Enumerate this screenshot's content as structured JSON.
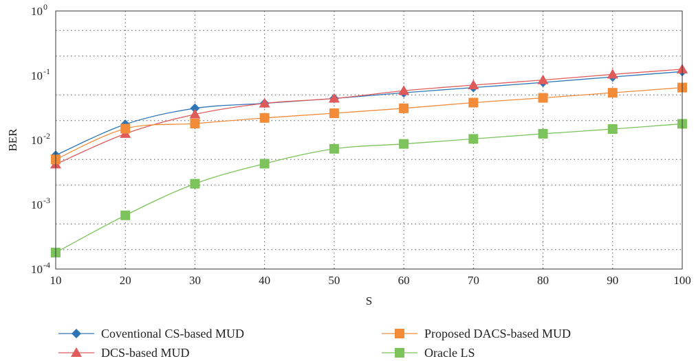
{
  "chart_data": {
    "type": "line",
    "xlabel": "S",
    "ylabel": "BER",
    "y_scale": "log",
    "xlim": [
      10,
      100
    ],
    "ylim": [
      0.0001,
      1
    ],
    "x_ticks": [
      "10",
      "20",
      "30",
      "40",
      "50",
      "60",
      "70",
      "80",
      "90",
      "100"
    ],
    "y_ticks": [
      {
        "value": 0.0001,
        "base": "10",
        "exp": "-4"
      },
      {
        "value": 0.001,
        "base": "10",
        "exp": "-3"
      },
      {
        "value": 0.01,
        "base": "10",
        "exp": "-2"
      },
      {
        "value": 0.1,
        "base": "10",
        "exp": "-1"
      },
      {
        "value": 1,
        "base": "10",
        "exp": "0"
      }
    ],
    "grid": true,
    "legend_position": "bottom",
    "x": [
      10,
      20,
      30,
      40,
      50,
      60,
      70,
      80,
      90,
      100
    ],
    "series": [
      {
        "name": "Coventional CS-based MUD",
        "color": "#2e75b6",
        "marker": "diamond",
        "values": [
          0.0058,
          0.0175,
          0.031,
          0.037,
          0.044,
          0.054,
          0.065,
          0.078,
          0.095,
          0.115
        ]
      },
      {
        "name": "DCS-based MUD",
        "color": "#e05a5a",
        "marker": "triangle",
        "values": [
          0.0042,
          0.0125,
          0.025,
          0.037,
          0.044,
          0.058,
          0.071,
          0.085,
          0.104,
          0.125
        ]
      },
      {
        "name": "Proposed DACS-based MUD",
        "color": "#f28c38",
        "marker": "square",
        "values": [
          0.005,
          0.015,
          0.018,
          0.022,
          0.026,
          0.031,
          0.038,
          0.045,
          0.054,
          0.065
        ]
      },
      {
        "name": "Oracle LS",
        "color": "#7cc35b",
        "marker": "square",
        "values": [
          0.00018,
          0.00068,
          0.0021,
          0.0043,
          0.0073,
          0.0087,
          0.0104,
          0.0125,
          0.0148,
          0.0178
        ]
      }
    ]
  }
}
